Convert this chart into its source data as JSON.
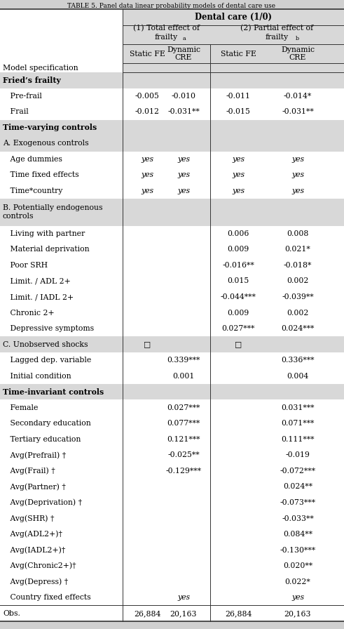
{
  "title": "TABLE 5. Panel data linear probability models of dental care use",
  "bg_color": "#d0d0d0",
  "shaded_color": "#d8d8d8",
  "border_color": "#333333",
  "font_size": 7.8,
  "rows": [
    {
      "label": "Fried’s frailty",
      "type": "section_bold",
      "c1": "",
      "c2": "",
      "c3": "",
      "c4": ""
    },
    {
      "label": "   Pre-frail",
      "type": "data",
      "c1": "-0.005",
      "c2": "-0.010",
      "c3": "-0.011",
      "c4": "-0.014*"
    },
    {
      "label": "   Frail",
      "type": "data",
      "c1": "-0.012",
      "c2": "-0.031**",
      "c3": "-0.015",
      "c4": "-0.031**"
    },
    {
      "label": "Time-varying controls",
      "type": "section_bold",
      "c1": "",
      "c2": "",
      "c3": "",
      "c4": ""
    },
    {
      "label": "A. Exogenous controls",
      "type": "section_normal",
      "c1": "",
      "c2": "",
      "c3": "",
      "c4": ""
    },
    {
      "label": "   Age dummies",
      "type": "data_italic",
      "c1": "yes",
      "c2": "yes",
      "c3": "yes",
      "c4": "yes"
    },
    {
      "label": "   Time fixed effects",
      "type": "data_italic",
      "c1": "yes",
      "c2": "yes",
      "c3": "yes",
      "c4": "yes"
    },
    {
      "label": "   Time*country",
      "type": "data_italic",
      "c1": "yes",
      "c2": "yes",
      "c3": "yes",
      "c4": "yes"
    },
    {
      "label": "B. Potentially endogenous\ncontrols",
      "type": "section_normal",
      "c1": "",
      "c2": "",
      "c3": "",
      "c4": ""
    },
    {
      "label": "   Living with partner",
      "type": "data",
      "c1": "",
      "c2": "",
      "c3": "0.006",
      "c4": "0.008"
    },
    {
      "label": "   Material deprivation",
      "type": "data",
      "c1": "",
      "c2": "",
      "c3": "0.009",
      "c4": "0.021*"
    },
    {
      "label": "   Poor SRH",
      "type": "data",
      "c1": "",
      "c2": "",
      "c3": "-0.016**",
      "c4": "-0.018*"
    },
    {
      "label": "   Limit. / ADL 2+",
      "type": "data",
      "c1": "",
      "c2": "",
      "c3": "0.015",
      "c4": "0.002"
    },
    {
      "label": "   Limit. / IADL 2+",
      "type": "data",
      "c1": "",
      "c2": "",
      "c3": "-0.044***",
      "c4": "-0.039**"
    },
    {
      "label": "   Chronic 2+",
      "type": "data",
      "c1": "",
      "c2": "",
      "c3": "0.009",
      "c4": "0.002"
    },
    {
      "label": "   Depressive symptoms",
      "type": "data",
      "c1": "",
      "c2": "",
      "c3": "0.027***",
      "c4": "0.024***"
    },
    {
      "label": "C. Unobserved shocks",
      "type": "section_shaded",
      "c1": "□",
      "c2": "",
      "c3": "□",
      "c4": ""
    },
    {
      "label": "   Lagged dep. variable",
      "type": "data",
      "c1": "",
      "c2": "0.339***",
      "c3": "",
      "c4": "0.336***"
    },
    {
      "label": "   Initial condition",
      "type": "data",
      "c1": "",
      "c2": "0.001",
      "c3": "",
      "c4": "0.004"
    },
    {
      "label": "Time-invariant controls",
      "type": "section_bold",
      "c1": "",
      "c2": "",
      "c3": "",
      "c4": ""
    },
    {
      "label": "   Female",
      "type": "data",
      "c1": "",
      "c2": "0.027***",
      "c3": "",
      "c4": "0.031***"
    },
    {
      "label": "   Secondary education",
      "type": "data",
      "c1": "",
      "c2": "0.077***",
      "c3": "",
      "c4": "0.071***"
    },
    {
      "label": "   Tertiary education",
      "type": "data",
      "c1": "",
      "c2": "0.121***",
      "c3": "",
      "c4": "0.111***"
    },
    {
      "label": "   Avg(Prefrail) †",
      "type": "data",
      "c1": "",
      "c2": "-0.025**",
      "c3": "",
      "c4": "-0.019"
    },
    {
      "label": "   Avg(Frail) †",
      "type": "data",
      "c1": "",
      "c2": "-0.129***",
      "c3": "",
      "c4": "-0.072***"
    },
    {
      "label": "   Avg(Partner) †",
      "type": "data",
      "c1": "",
      "c2": "",
      "c3": "",
      "c4": "0.024**"
    },
    {
      "label": "   Avg(Deprivation) †",
      "type": "data",
      "c1": "",
      "c2": "",
      "c3": "",
      "c4": "-0.073***"
    },
    {
      "label": "   Avg(SHR) †",
      "type": "data",
      "c1": "",
      "c2": "",
      "c3": "",
      "c4": "-0.033**"
    },
    {
      "label": "   Avg(ADL2+)†",
      "type": "data",
      "c1": "",
      "c2": "",
      "c3": "",
      "c4": "0.084**"
    },
    {
      "label": "   Avg(IADL2+)†",
      "type": "data",
      "c1": "",
      "c2": "",
      "c3": "",
      "c4": "-0.130***"
    },
    {
      "label": "   Avg(Chronic2+)†",
      "type": "data",
      "c1": "",
      "c2": "",
      "c3": "",
      "c4": "0.020**"
    },
    {
      "label": "   Avg(Depress) †",
      "type": "data",
      "c1": "",
      "c2": "",
      "c3": "",
      "c4": "0.022*"
    },
    {
      "label": "   Country fixed effects",
      "type": "data_italic",
      "c1": "",
      "c2": "yes",
      "c3": "",
      "c4": "yes"
    },
    {
      "label": "Obs.",
      "type": "obs",
      "c1": "26,884",
      "c2": "20,163",
      "c3": "26,884",
      "c4": "20,163"
    }
  ]
}
